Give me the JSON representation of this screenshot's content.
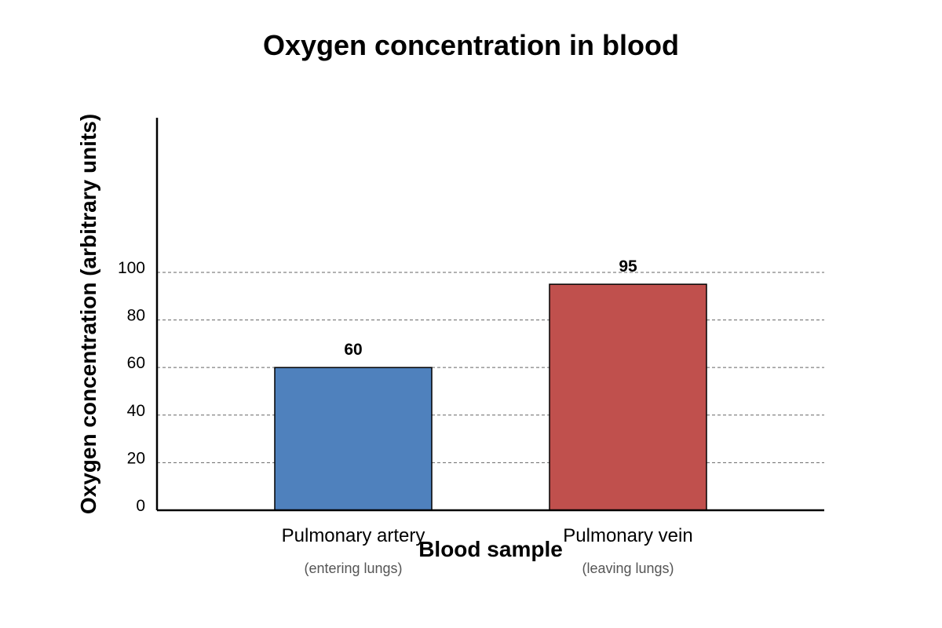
{
  "chart_data": {
    "type": "bar",
    "title": "Oxygen concentration in blood",
    "xlabel": "Blood sample",
    "ylabel": "Oxygen concentration (arbitrary units)",
    "categories": [
      "Pulmonary artery",
      "Pulmonary vein"
    ],
    "subcategories": [
      "(entering lungs)",
      "(leaving lungs)"
    ],
    "values": [
      60,
      95
    ],
    "data_labels": [
      "60",
      "95"
    ],
    "colors": [
      "#4f81bd",
      "#c0504d"
    ],
    "yticks": [
      0,
      20,
      40,
      60,
      80,
      100
    ],
    "ytick_labels": [
      "0",
      "20",
      "40",
      "60",
      "80",
      "100"
    ],
    "ylim": [
      0,
      165
    ],
    "grid": "dashed horizontal at ticks",
    "legend": "none"
  }
}
